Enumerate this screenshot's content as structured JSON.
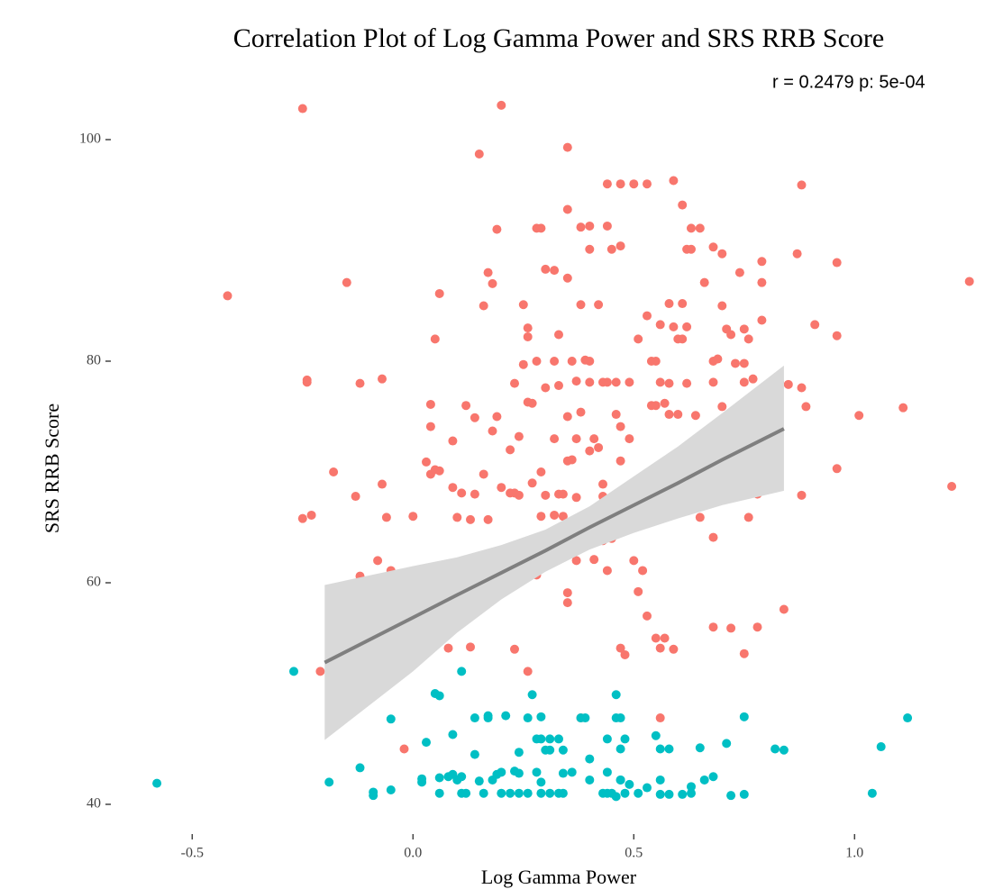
{
  "chart_data": {
    "type": "scatter",
    "title": "Correlation Plot of Log Gamma Power and SRS RRB Score",
    "annotation": "r =  0.2479 p: 5e-04",
    "x_label": "Log Gamma Power",
    "y_label": "SRS RRB Score",
    "xlim": [
      -0.67,
      1.33
    ],
    "ylim": [
      37.5,
      105
    ],
    "xticks": [
      -0.5,
      {
        "value": 0,
        "label": "0.0"
      },
      0.5,
      {
        "value": 1,
        "label": "1.0"
      }
    ],
    "yticks": [
      40,
      60,
      80,
      100
    ],
    "grid": false,
    "series": [
      {
        "color": "#F8766D",
        "x": [
          -0.42,
          -0.25,
          -0.25,
          -0.24,
          -0.24,
          -0.23,
          -0.21,
          -0.18,
          -0.15,
          -0.15,
          -0.13,
          -0.12,
          -0.12,
          -0.08,
          -0.07,
          -0.07,
          -0.06,
          -0.05,
          -0.02,
          0.0,
          0.03,
          0.04,
          0.05,
          0.06,
          0.04,
          0.04,
          0.04,
          0.05,
          0.06,
          0.07,
          0.06,
          0.08,
          0.09,
          0.09,
          0.1,
          0.11,
          0.11,
          0.12,
          0.13,
          0.13,
          0.14,
          0.14,
          0.15,
          0.16,
          0.16,
          0.16,
          0.17,
          0.17,
          0.18,
          0.18,
          0.19,
          0.19,
          0.19,
          0.19,
          0.2,
          0.2,
          0.21,
          0.22,
          0.22,
          0.22,
          0.23,
          0.23,
          0.23,
          0.24,
          0.24,
          0.25,
          0.25,
          0.26,
          0.26,
          0.26,
          0.26,
          0.27,
          0.27,
          0.27,
          0.28,
          0.28,
          0.28,
          0.29,
          0.29,
          0.29,
          0.3,
          0.3,
          0.3,
          0.3,
          0.32,
          0.32,
          0.32,
          0.32,
          0.33,
          0.33,
          0.33,
          0.33,
          0.34,
          0.34,
          0.34,
          0.35,
          0.35,
          0.35,
          0.35,
          0.35,
          0.35,
          0.35,
          0.36,
          0.36,
          0.36,
          0.37,
          0.37,
          0.37,
          0.37,
          0.38,
          0.38,
          0.38,
          0.38,
          0.38,
          0.39,
          0.4,
          0.4,
          0.4,
          0.4,
          0.4,
          0.41,
          0.41,
          0.41,
          0.42,
          0.42,
          0.43,
          0.42,
          0.43,
          0.43,
          0.43,
          0.43,
          0.44,
          0.44,
          0.44,
          0.44,
          0.45,
          0.45,
          0.45,
          0.46,
          0.46,
          0.46,
          0.47,
          0.47,
          0.47,
          0.47,
          0.47,
          0.48,
          0.49,
          0.49,
          0.49,
          0.5,
          0.5,
          0.51,
          0.51,
          0.52,
          0.52,
          0.53,
          0.53,
          0.53,
          0.54,
          0.54,
          0.55,
          0.55,
          0.55,
          0.55,
          0.57,
          0.55,
          0.56,
          0.56,
          0.56,
          0.56,
          0.57,
          0.57,
          0.58,
          0.58,
          0.58,
          0.59,
          0.59,
          0.59,
          0.6,
          0.61,
          0.6,
          0.61,
          0.61,
          0.62,
          0.63,
          0.62,
          0.62,
          0.63,
          0.65,
          0.64,
          0.64,
          0.65,
          0.66,
          0.68,
          0.68,
          0.69,
          0.68,
          0.68,
          0.68,
          0.69,
          0.68,
          0.7,
          0.7,
          0.7,
          0.71,
          0.72,
          0.72,
          0.72,
          0.73,
          0.75,
          0.74,
          0.75,
          0.75,
          0.75,
          0.76,
          0.76,
          0.77,
          0.78,
          0.78,
          0.79,
          0.79,
          0.79,
          0.79,
          0.8,
          0.81,
          0.81,
          0.83,
          0.84,
          0.85,
          0.87,
          0.88,
          0.88,
          0.88,
          0.89,
          0.91,
          0.96,
          0.96,
          0.96,
          1.01,
          1.11,
          1.22,
          1.26
        ],
        "values": [
          85.9,
          65.8,
          102.8,
          78.1,
          78.3,
          66.1,
          52.0,
          70.0,
          87.1,
          58.7,
          67.8,
          78.0,
          60.6,
          62.0,
          68.9,
          78.4,
          65.9,
          61.1,
          45.0,
          66.0,
          70.9,
          69.8,
          70.2,
          70.1,
          59.1,
          76.1,
          74.1,
          82.0,
          61.1,
          61.1,
          86.1,
          54.1,
          68.6,
          72.8,
          65.9,
          57.0,
          68.1,
          76.0,
          65.7,
          54.2,
          68.0,
          74.9,
          98.7,
          69.8,
          85.0,
          61.7,
          65.7,
          88.0,
          73.7,
          87.0,
          91.9,
          61.1,
          62.0,
          75.0,
          68.6,
          103.1,
          60.2,
          62.4,
          72.0,
          68.1,
          78.0,
          68.1,
          54.0,
          67.9,
          73.2,
          85.1,
          79.7,
          76.3,
          52.0,
          83.0,
          82.2,
          61.8,
          76.2,
          69.0,
          92.0,
          80.0,
          60.7,
          70.0,
          66.0,
          92.0,
          77.6,
          64.0,
          67.9,
          88.3,
          88.2,
          80.0,
          66.1,
          73.0,
          68.0,
          63.8,
          77.8,
          82.4,
          66.0,
          68.0,
          64.0,
          99.3,
          75.0,
          71.0,
          93.7,
          87.5,
          59.1,
          58.2,
          80.0,
          64.1,
          71.1,
          62.0,
          73.0,
          67.7,
          78.2,
          92.1,
          75.4,
          85.1,
          64.4,
          47.8,
          80.1,
          92.2,
          90.1,
          71.9,
          80.0,
          78.1,
          73.0,
          62.1,
          64.0,
          85.1,
          66.1,
          66.0,
          72.2,
          78.1,
          68.9,
          67.8,
          63.8,
          61.1,
          92.2,
          96.0,
          78.1,
          65.9,
          90.1,
          64.0,
          66.0,
          78.1,
          75.2,
          96.0,
          71.0,
          74.1,
          90.4,
          54.1,
          53.5,
          78.1,
          67.9,
          73.0,
          62.0,
          96.0,
          82.0,
          59.2,
          61.1,
          66.1,
          96.0,
          57.0,
          84.1,
          76.0,
          80.0,
          80.0,
          70.0,
          76.0,
          67.9,
          68.0,
          55.0,
          54.1,
          78.1,
          47.8,
          83.3,
          76.2,
          55.0,
          75.2,
          78.0,
          85.2,
          83.1,
          54.0,
          96.3,
          82.0,
          82.0,
          75.2,
          94.1,
          85.2,
          90.1,
          90.1,
          78.0,
          83.1,
          92.0,
          92.0,
          68.7,
          75.1,
          65.9,
          87.1,
          78.1,
          80.0,
          80.2,
          90.3,
          64.1,
          68.0,
          67.9,
          56.0,
          85.0,
          75.9,
          89.7,
          82.9,
          82.4,
          67.9,
          55.9,
          79.8,
          79.8,
          88.0,
          78.1,
          53.6,
          82.9,
          65.9,
          82.0,
          78.4,
          68.0,
          56.0,
          69.0,
          87.1,
          89.0,
          83.7,
          72.8,
          73.7,
          75.9,
          78.1,
          57.6,
          77.9,
          89.7,
          95.9,
          77.6,
          67.9,
          75.9,
          83.3,
          70.3,
          88.9,
          82.3,
          75.1,
          75.8,
          68.7,
          87.2
        ]
      },
      {
        "color": "#00BFC4",
        "x": [
          -0.58,
          -0.27,
          -0.19,
          -0.12,
          -0.09,
          -0.09,
          -0.05,
          -0.05,
          0.02,
          0.02,
          0.06,
          0.03,
          0.05,
          0.06,
          0.06,
          0.08,
          0.09,
          0.1,
          0.11,
          0.09,
          0.11,
          0.12,
          0.11,
          0.14,
          0.17,
          0.17,
          0.14,
          0.15,
          0.16,
          0.18,
          0.19,
          0.2,
          0.2,
          0.22,
          0.24,
          0.26,
          0.21,
          0.23,
          0.24,
          0.24,
          0.26,
          0.29,
          0.27,
          0.28,
          0.29,
          0.31,
          0.33,
          0.28,
          0.29,
          0.3,
          0.31,
          0.34,
          0.29,
          0.31,
          0.33,
          0.34,
          0.34,
          0.36,
          0.38,
          0.39,
          0.4,
          0.4,
          0.43,
          0.44,
          0.45,
          0.44,
          0.44,
          0.46,
          0.47,
          0.46,
          0.47,
          0.47,
          0.46,
          0.48,
          0.47,
          0.48,
          0.49,
          0.51,
          0.53,
          0.55,
          0.56,
          0.58,
          0.56,
          0.56,
          0.58,
          0.61,
          0.63,
          0.63,
          0.65,
          0.66,
          0.68,
          0.71,
          0.72,
          0.75,
          0.75,
          0.82,
          0.84,
          1.04,
          1.06,
          1.12
        ],
        "values": [
          41.9,
          52.0,
          42.0,
          43.3,
          41.1,
          40.8,
          41.3,
          47.7,
          42.3,
          42.0,
          42.4,
          45.6,
          50.0,
          49.8,
          41.0,
          42.5,
          42.7,
          42.2,
          42.5,
          46.3,
          41.0,
          41.0,
          52.0,
          47.8,
          47.8,
          48.0,
          44.5,
          42.1,
          41.0,
          42.2,
          42.7,
          42.9,
          41.0,
          41.0,
          41.0,
          41.0,
          48.0,
          43.0,
          42.8,
          44.7,
          47.8,
          47.9,
          49.9,
          45.9,
          45.9,
          45.9,
          45.9,
          42.9,
          42.0,
          44.9,
          44.9,
          44.9,
          41.0,
          41.0,
          41.0,
          41.0,
          42.8,
          42.9,
          47.8,
          47.8,
          44.1,
          42.2,
          41.0,
          41.0,
          41.0,
          42.9,
          45.9,
          47.8,
          47.8,
          49.9,
          42.2,
          42.2,
          40.7,
          41.0,
          45.0,
          45.9,
          41.8,
          41.0,
          41.5,
          46.2,
          45.0,
          45.0,
          42.2,
          40.9,
          40.9,
          40.9,
          41.0,
          41.6,
          45.1,
          42.2,
          42.5,
          45.5,
          40.8,
          40.9,
          47.9,
          45.0,
          44.9,
          41.0,
          45.2,
          47.8
        ]
      }
    ],
    "fit": {
      "color": "#7f7f7f",
      "band_color": "#d9d9d9",
      "x": [
        -0.2,
        0.0,
        0.1,
        0.2,
        0.3,
        0.4,
        0.5,
        0.6,
        0.7,
        0.84
      ],
      "y": [
        52.8,
        56.86,
        58.9,
        60.9,
        62.9,
        65.0,
        67.0,
        69.0,
        71.1,
        73.9
      ],
      "lower": [
        45.8,
        52.0,
        55.5,
        58.5,
        61.0,
        63.0,
        64.5,
        65.8,
        67.0,
        68.3
      ],
      "upper": [
        59.8,
        61.5,
        62.3,
        63.4,
        64.8,
        66.9,
        69.6,
        72.3,
        75.3,
        79.6
      ]
    }
  }
}
